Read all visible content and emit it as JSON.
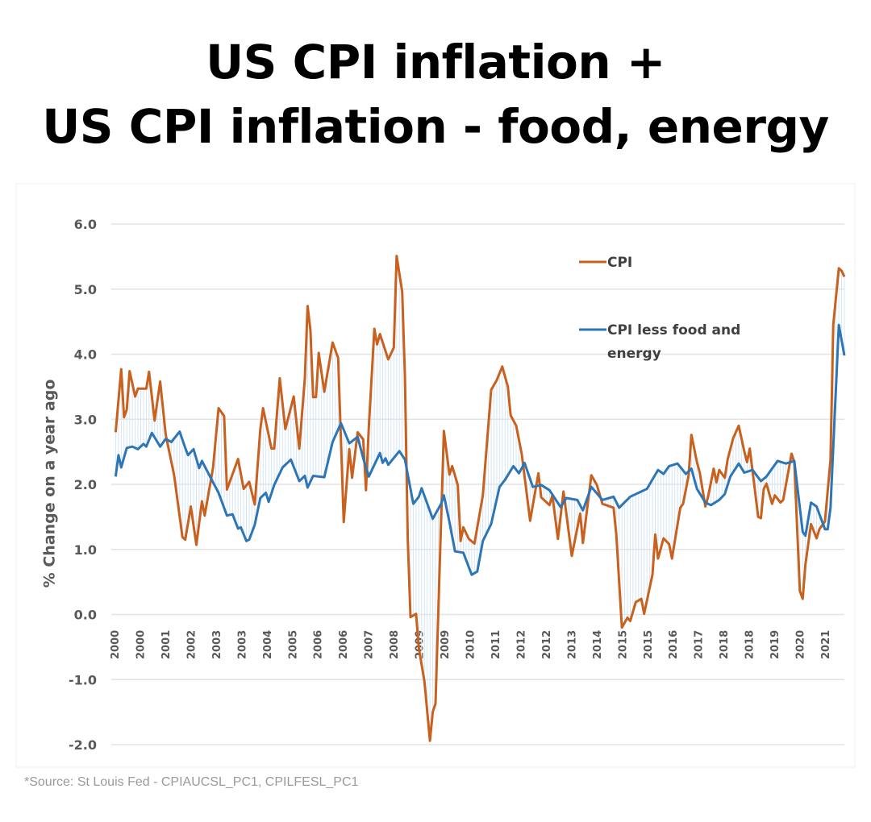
{
  "title_line1": "US CPI inflation +",
  "title_line2": "US CPI inflation - food, energy",
  "source": "*Source: St Louis Fed - CPIAUCSL_PC1, CPILFESL_PC1",
  "chart_data": {
    "type": "line",
    "title": "",
    "xlabel": "",
    "ylabel": "% Change on a year ago",
    "xlim": [
      "2000-01",
      "2021-12"
    ],
    "ylim": [
      -2.0,
      6.0
    ],
    "yticks": [
      "6.0",
      "5.0",
      "4.0",
      "3.0",
      "2.0",
      "1.0",
      "0.0",
      "-1.0",
      "-2.0"
    ],
    "xtick_labels": [
      "2000",
      "2000",
      "2001",
      "2002",
      "2003",
      "2003",
      "2004",
      "2005",
      "2006",
      "2006",
      "2007",
      "2008",
      "2009",
      "2009",
      "2010",
      "2011",
      "2012",
      "2012",
      "2013",
      "2014",
      "2015",
      "2015",
      "2016",
      "2017",
      "2018",
      "2018",
      "2019",
      "2020",
      "2021"
    ],
    "grid": true,
    "legend_position": "top-right",
    "gap_shading": "light blue vertical lines between the two series",
    "series": [
      {
        "name": "CPI",
        "color": "#C8601E",
        "points": [
          [
            "2000-02",
            2.8
          ],
          [
            "2000-04",
            3.77
          ],
          [
            "2000-05",
            3.03
          ],
          [
            "2000-06",
            3.15
          ],
          [
            "2000-07",
            3.74
          ],
          [
            "2000-09",
            3.35
          ],
          [
            "2000-10",
            3.47
          ],
          [
            "2001-01",
            3.47
          ],
          [
            "2001-02",
            3.73
          ],
          [
            "2001-04",
            2.98
          ],
          [
            "2001-06",
            3.58
          ],
          [
            "2001-08",
            2.76
          ],
          [
            "2001-11",
            2.14
          ],
          [
            "2002-02",
            1.19
          ],
          [
            "2002-03",
            1.15
          ],
          [
            "2002-05",
            1.66
          ],
          [
            "2002-07",
            1.07
          ],
          [
            "2002-09",
            1.74
          ],
          [
            "2002-10",
            1.52
          ],
          [
            "2003-01",
            2.26
          ],
          [
            "2003-03",
            3.17
          ],
          [
            "2003-05",
            3.05
          ],
          [
            "2003-06",
            1.92
          ],
          [
            "2003-10",
            2.39
          ],
          [
            "2003-12",
            1.93
          ],
          [
            "2004-02",
            2.04
          ],
          [
            "2004-04",
            1.69
          ],
          [
            "2004-06",
            2.85
          ],
          [
            "2004-07",
            3.17
          ],
          [
            "2004-10",
            2.55
          ],
          [
            "2004-11",
            2.55
          ],
          [
            "2005-01",
            3.63
          ],
          [
            "2005-03",
            2.85
          ],
          [
            "2005-06",
            3.35
          ],
          [
            "2005-08",
            2.55
          ],
          [
            "2005-10",
            3.63
          ],
          [
            "2005-11",
            4.74
          ],
          [
            "2005-12",
            4.37
          ],
          [
            "2006-01",
            3.34
          ],
          [
            "2006-02",
            3.34
          ],
          [
            "2006-03",
            4.02
          ],
          [
            "2006-05",
            3.42
          ],
          [
            "2006-08",
            4.18
          ],
          [
            "2006-10",
            3.94
          ],
          [
            "2006-12",
            1.42
          ],
          [
            "2007-02",
            2.54
          ],
          [
            "2007-03",
            2.1
          ],
          [
            "2007-05",
            2.8
          ],
          [
            "2007-07",
            2.69
          ],
          [
            "2007-08",
            1.91
          ],
          [
            "2007-09",
            2.88
          ],
          [
            "2007-11",
            4.39
          ],
          [
            "2007-12",
            4.15
          ],
          [
            "2008-01",
            4.31
          ],
          [
            "2008-04",
            3.92
          ],
          [
            "2008-06",
            4.1
          ],
          [
            "2008-07",
            5.51
          ],
          [
            "2008-09",
            4.96
          ],
          [
            "2008-10",
            3.66
          ],
          [
            "2008-11",
            1.16
          ],
          [
            "2008-12",
            -0.04
          ],
          [
            "2009-02",
            0.01
          ],
          [
            "2009-03",
            -0.52
          ],
          [
            "2009-05",
            -1.03
          ],
          [
            "2009-07",
            -1.94
          ],
          [
            "2009-08",
            -1.5
          ],
          [
            "2009-09",
            -1.37
          ],
          [
            "2009-11",
            1.42
          ],
          [
            "2009-12",
            2.82
          ],
          [
            "2010-02",
            2.15
          ],
          [
            "2010-03",
            2.28
          ],
          [
            "2010-05",
            1.99
          ],
          [
            "2010-06",
            1.13
          ],
          [
            "2010-07",
            1.34
          ],
          [
            "2010-09",
            1.16
          ],
          [
            "2010-11",
            1.09
          ],
          [
            "2011-02",
            1.83
          ],
          [
            "2011-05",
            3.45
          ],
          [
            "2011-07",
            3.6
          ],
          [
            "2011-09",
            3.81
          ],
          [
            "2011-11",
            3.5
          ],
          [
            "2011-12",
            3.06
          ],
          [
            "2012-02",
            2.9
          ],
          [
            "2012-04",
            2.46
          ],
          [
            "2012-06",
            1.78
          ],
          [
            "2012-07",
            1.44
          ],
          [
            "2012-10",
            2.17
          ],
          [
            "2012-11",
            1.8
          ],
          [
            "2013-02",
            1.68
          ],
          [
            "2013-03",
            1.83
          ],
          [
            "2013-05",
            1.16
          ],
          [
            "2013-07",
            1.89
          ],
          [
            "2013-10",
            0.9
          ],
          [
            "2014-01",
            1.55
          ],
          [
            "2014-02",
            1.1
          ],
          [
            "2014-05",
            2.14
          ],
          [
            "2014-07",
            1.99
          ],
          [
            "2014-09",
            1.7
          ],
          [
            "2015-01",
            1.64
          ],
          [
            "2015-02",
            1.23
          ],
          [
            "2015-04",
            -0.2
          ],
          [
            "2015-06",
            -0.05
          ],
          [
            "2015-07",
            -0.1
          ],
          [
            "2015-09",
            0.19
          ],
          [
            "2015-11",
            0.24
          ],
          [
            "2015-12",
            0.01
          ],
          [
            "2016-03",
            0.61
          ],
          [
            "2016-04",
            1.23
          ],
          [
            "2016-05",
            0.86
          ],
          [
            "2016-07",
            1.17
          ],
          [
            "2016-09",
            1.08
          ],
          [
            "2016-10",
            0.86
          ],
          [
            "2017-01",
            1.64
          ],
          [
            "2017-02",
            1.7
          ],
          [
            "2017-04",
            2.14
          ],
          [
            "2017-05",
            2.76
          ],
          [
            "2017-07",
            2.34
          ],
          [
            "2017-08",
            2.18
          ],
          [
            "2017-10",
            1.66
          ],
          [
            "2017-11",
            1.81
          ],
          [
            "2018-01",
            2.24
          ],
          [
            "2018-02",
            2.03
          ],
          [
            "2018-03",
            2.22
          ],
          [
            "2018-05",
            2.1
          ],
          [
            "2018-06",
            2.38
          ],
          [
            "2018-08",
            2.71
          ],
          [
            "2018-10",
            2.9
          ],
          [
            "2018-12",
            2.51
          ],
          [
            "2019-01",
            2.34
          ],
          [
            "2019-02",
            2.55
          ],
          [
            "2019-05",
            1.5
          ],
          [
            "2019-06",
            1.48
          ],
          [
            "2019-07",
            1.93
          ],
          [
            "2019-08",
            2.01
          ],
          [
            "2019-10",
            1.7
          ],
          [
            "2019-11",
            1.83
          ],
          [
            "2020-01",
            1.72
          ],
          [
            "2020-02",
            1.76
          ],
          [
            "2020-05",
            2.47
          ],
          [
            "2020-06",
            2.34
          ],
          [
            "2020-08",
            0.36
          ],
          [
            "2020-09",
            0.24
          ],
          [
            "2020-10",
            0.77
          ],
          [
            "2020-12",
            1.39
          ],
          [
            "2021-02",
            1.17
          ],
          [
            "2021-03",
            1.31
          ],
          [
            "2021-05",
            1.43
          ],
          [
            "2021-07",
            2.38
          ],
          [
            "2021-08",
            4.45
          ],
          [
            "2021-10",
            5.32
          ],
          [
            "2021-11",
            5.28
          ],
          [
            "2021-12",
            5.19
          ]
        ]
      },
      {
        "name": "CPI less food and energy",
        "color": "#2E75B6",
        "points": [
          [
            "2000-02",
            2.12
          ],
          [
            "2000-03",
            2.45
          ],
          [
            "2000-04",
            2.26
          ],
          [
            "2000-06",
            2.56
          ],
          [
            "2000-08",
            2.58
          ],
          [
            "2000-10",
            2.54
          ],
          [
            "2000-12",
            2.62
          ],
          [
            "2001-01",
            2.58
          ],
          [
            "2001-03",
            2.79
          ],
          [
            "2001-05",
            2.65
          ],
          [
            "2001-06",
            2.58
          ],
          [
            "2001-08",
            2.7
          ],
          [
            "2001-10",
            2.65
          ],
          [
            "2002-01",
            2.81
          ],
          [
            "2002-03",
            2.56
          ],
          [
            "2002-04",
            2.45
          ],
          [
            "2002-06",
            2.54
          ],
          [
            "2002-08",
            2.25
          ],
          [
            "2002-09",
            2.36
          ],
          [
            "2003-01",
            2.03
          ],
          [
            "2003-03",
            1.87
          ],
          [
            "2003-06",
            1.52
          ],
          [
            "2003-08",
            1.54
          ],
          [
            "2003-10",
            1.32
          ],
          [
            "2003-11",
            1.34
          ],
          [
            "2004-01",
            1.13
          ],
          [
            "2004-02",
            1.15
          ],
          [
            "2004-04",
            1.38
          ],
          [
            "2004-06",
            1.79
          ],
          [
            "2004-08",
            1.87
          ],
          [
            "2004-09",
            1.73
          ],
          [
            "2004-11",
            1.99
          ],
          [
            "2005-02",
            2.26
          ],
          [
            "2005-05",
            2.38
          ],
          [
            "2005-08",
            2.05
          ],
          [
            "2005-10",
            2.13
          ],
          [
            "2005-11",
            1.95
          ],
          [
            "2006-01",
            2.13
          ],
          [
            "2006-05",
            2.11
          ],
          [
            "2006-08",
            2.65
          ],
          [
            "2006-11",
            2.94
          ],
          [
            "2007-02",
            2.63
          ],
          [
            "2007-05",
            2.73
          ],
          [
            "2007-07",
            2.4
          ],
          [
            "2007-09",
            2.12
          ],
          [
            "2008-01",
            2.48
          ],
          [
            "2008-02",
            2.33
          ],
          [
            "2008-03",
            2.4
          ],
          [
            "2008-04",
            2.3
          ],
          [
            "2008-08",
            2.51
          ],
          [
            "2008-10",
            2.38
          ],
          [
            "2009-01",
            1.7
          ],
          [
            "2009-03",
            1.81
          ],
          [
            "2009-04",
            1.94
          ],
          [
            "2009-08",
            1.47
          ],
          [
            "2009-11",
            1.7
          ],
          [
            "2009-12",
            1.83
          ],
          [
            "2010-02",
            1.42
          ],
          [
            "2010-04",
            0.97
          ],
          [
            "2010-07",
            0.95
          ],
          [
            "2010-10",
            0.61
          ],
          [
            "2010-12",
            0.66
          ],
          [
            "2011-02",
            1.13
          ],
          [
            "2011-05",
            1.39
          ],
          [
            "2011-08",
            1.96
          ],
          [
            "2011-10",
            2.07
          ],
          [
            "2012-01",
            2.28
          ],
          [
            "2012-03",
            2.17
          ],
          [
            "2012-05",
            2.33
          ],
          [
            "2012-08",
            1.96
          ],
          [
            "2012-11",
            1.99
          ],
          [
            "2013-02",
            1.91
          ],
          [
            "2013-06",
            1.65
          ],
          [
            "2013-08",
            1.79
          ],
          [
            "2013-12",
            1.76
          ],
          [
            "2014-02",
            1.6
          ],
          [
            "2014-05",
            1.96
          ],
          [
            "2014-09",
            1.76
          ],
          [
            "2015-01",
            1.81
          ],
          [
            "2015-03",
            1.64
          ],
          [
            "2015-07",
            1.81
          ],
          [
            "2015-11",
            1.89
          ],
          [
            "2016-01",
            1.93
          ],
          [
            "2016-05",
            2.22
          ],
          [
            "2016-07",
            2.16
          ],
          [
            "2016-09",
            2.28
          ],
          [
            "2016-12",
            2.32
          ],
          [
            "2017-03",
            2.16
          ],
          [
            "2017-05",
            2.24
          ],
          [
            "2017-07",
            1.93
          ],
          [
            "2017-10",
            1.72
          ],
          [
            "2017-12",
            1.68
          ],
          [
            "2018-03",
            1.76
          ],
          [
            "2018-05",
            1.85
          ],
          [
            "2018-07",
            2.12
          ],
          [
            "2018-10",
            2.32
          ],
          [
            "2018-12",
            2.18
          ],
          [
            "2019-03",
            2.22
          ],
          [
            "2019-06",
            2.05
          ],
          [
            "2019-08",
            2.12
          ],
          [
            "2019-12",
            2.36
          ],
          [
            "2020-03",
            2.32
          ],
          [
            "2020-06",
            2.36
          ],
          [
            "2020-09",
            1.27
          ],
          [
            "2020-10",
            1.21
          ],
          [
            "2020-12",
            1.72
          ],
          [
            "2021-02",
            1.66
          ],
          [
            "2021-05",
            1.31
          ],
          [
            "2021-06",
            1.31
          ],
          [
            "2021-07",
            1.64
          ],
          [
            "2021-10",
            4.45
          ],
          [
            "2021-12",
            3.98
          ]
        ]
      }
    ],
    "legend": [
      {
        "label_line1": "CPI",
        "label_line2": ""
      },
      {
        "label_line1": "CPI less food and",
        "label_line2": "energy"
      }
    ]
  }
}
